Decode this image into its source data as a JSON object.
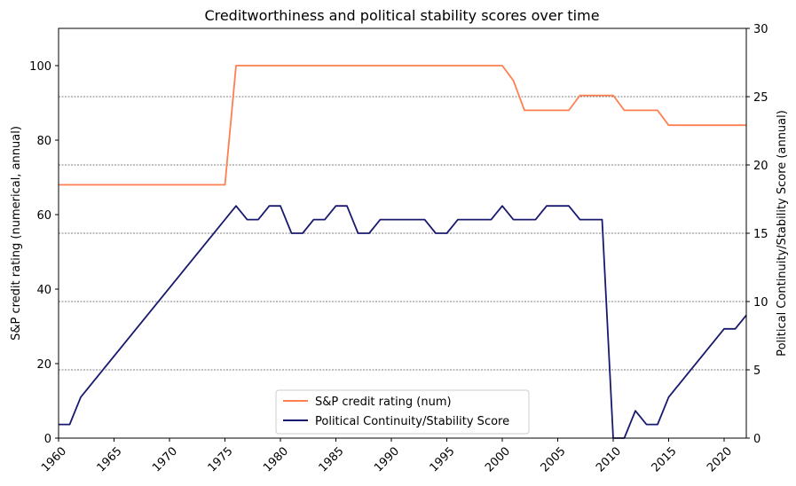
{
  "chart_data": {
    "type": "line",
    "title": "Creditworthiness and political stability scores over time",
    "xlabel": "",
    "ylabel": "S&P credit rating (numerical, annual)",
    "ylabel_right": "Political Continuity/Stability Score (annual)",
    "xlim": [
      1960,
      2022
    ],
    "ylim": [
      0,
      110
    ],
    "ylim_right": [
      0,
      30
    ],
    "x_ticks": [
      1960,
      1965,
      1970,
      1975,
      1980,
      1985,
      1990,
      1995,
      2000,
      2005,
      2010,
      2015,
      2020
    ],
    "y_ticks": [
      0,
      20,
      40,
      60,
      80,
      100
    ],
    "y_ticks_right": [
      0,
      5,
      10,
      15,
      20,
      25,
      30
    ],
    "grid": "dashed horizontal lines at right-axis ticks",
    "legend_position": "lower center",
    "series": [
      {
        "name": "S&P credit rating (num)",
        "axis": "left",
        "color": "#ff7f50",
        "x": [
          1960,
          1975,
          1976,
          2000,
          2001,
          2002,
          2006,
          2007,
          2010,
          2011,
          2014,
          2015,
          2022
        ],
        "y": [
          68,
          68,
          100,
          100,
          96,
          88,
          88,
          92,
          92,
          88,
          88,
          84,
          84
        ]
      },
      {
        "name": "Political Continuity/Stability Score",
        "axis": "right",
        "color": "#191970",
        "x": [
          1960,
          1961,
          1962,
          1976,
          1977,
          1978,
          1979,
          1980,
          1981,
          1982,
          1983,
          1984,
          1985,
          1986,
          1987,
          1988,
          1989,
          1990,
          1991,
          1992,
          1993,
          1994,
          1995,
          1996,
          1997,
          1998,
          1999,
          2000,
          2001,
          2002,
          2003,
          2004,
          2005,
          2006,
          2007,
          2008,
          2009,
          2010,
          2011,
          2012,
          2013,
          2014,
          2015,
          2020,
          2021,
          2022
        ],
        "y": [
          1,
          1,
          3,
          17,
          16,
          16,
          17,
          17,
          15,
          15,
          16,
          16,
          17,
          17,
          15,
          15,
          16,
          16,
          16,
          16,
          16,
          15,
          15,
          16,
          16,
          16,
          16,
          17,
          16,
          16,
          16,
          17,
          17,
          17,
          16,
          16,
          16,
          0,
          0,
          2,
          1,
          1,
          3,
          8,
          8,
          9
        ]
      }
    ]
  }
}
